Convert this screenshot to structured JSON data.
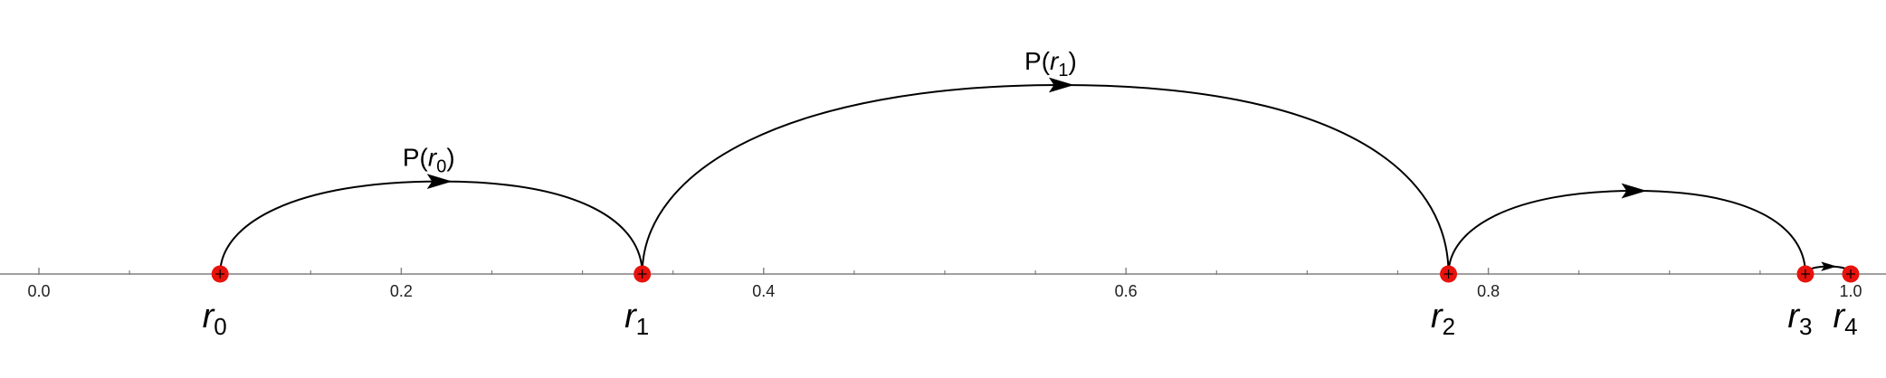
{
  "axis": {
    "ticks": [
      "0.0",
      "0.2",
      "0.4",
      "0.6",
      "0.8",
      "1.0"
    ],
    "tick_values": [
      0.0,
      0.2,
      0.4,
      0.6,
      0.8,
      1.0
    ],
    "minor_step": 0.05,
    "range": [
      0.0,
      1.0
    ],
    "line_color": "#808080"
  },
  "points": [
    {
      "var": "r",
      "sub": "0",
      "value": 0.1
    },
    {
      "var": "r",
      "sub": "1",
      "value": 0.333
    },
    {
      "var": "r",
      "sub": "2",
      "value": 0.778
    },
    {
      "var": "r",
      "sub": "3",
      "value": 0.975
    },
    {
      "var": "r",
      "sub": "4",
      "value": 1.0
    }
  ],
  "point_color": "#e8120c",
  "arcs": [
    {
      "from": 0,
      "to": 1,
      "height": 0.49,
      "label_prefix": "P(",
      "label_var": "r",
      "label_sub": "0",
      "label_suffix": ")"
    },
    {
      "from": 1,
      "to": 2,
      "height": 1.0,
      "label_prefix": "P(",
      "label_var": "r",
      "label_sub": "1",
      "label_suffix": ")"
    },
    {
      "from": 2,
      "to": 3,
      "height": 0.44
    },
    {
      "from": 3,
      "to": 4,
      "height": 0.04
    }
  ]
}
